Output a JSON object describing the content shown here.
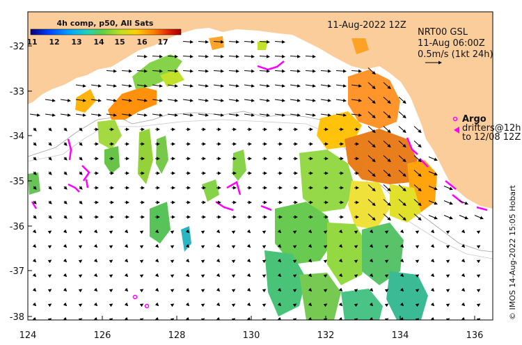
{
  "header": {
    "date": "11-Aug-2022 12Z"
  },
  "colorbar": {
    "title": "4h comp, p50, All Sats",
    "ticks": [
      "11",
      "12",
      "13",
      "14",
      "15",
      "16",
      "17"
    ],
    "colors": [
      "#08007a",
      "#0040ff",
      "#00a0ff",
      "#20d0c0",
      "#60d040",
      "#c0e020",
      "#ffd000",
      "#ff8000",
      "#e02000",
      "#a00000"
    ]
  },
  "currents_legend": {
    "product": "NRT00 GSL",
    "time": "11-Aug 06:00Z",
    "scale": "0.5m/s (1kt 24h)"
  },
  "argo_legend": {
    "title": "Argo",
    "line1": "drifters@12h",
    "line2": "to 12/08 12Z"
  },
  "axes": {
    "x_ticks": [
      "124",
      "126",
      "128",
      "130",
      "132",
      "134",
      "136"
    ],
    "y_ticks": [
      "-32",
      "-33",
      "-34",
      "-35",
      "-36",
      "-37",
      "-38"
    ]
  },
  "credit": "© IMOS 14-Aug-2022 15:05 Hobart",
  "colors": {
    "land": "#fbcd9b",
    "drifter": "#ff00ff"
  }
}
